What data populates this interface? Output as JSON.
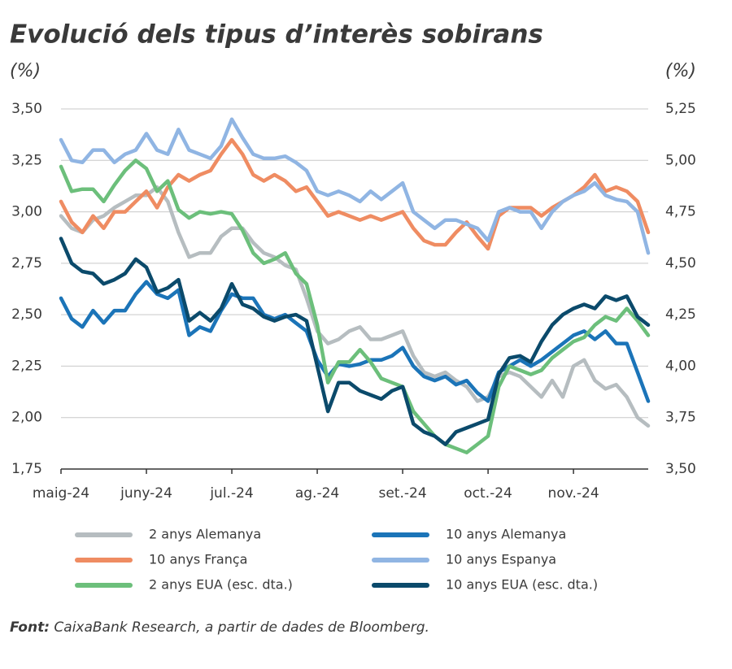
{
  "chart_data": {
    "type": "line",
    "title": "Evolució dels tipus d’interès sobirans",
    "y_label": "(%)",
    "y2_label": "(%)",
    "source": {
      "label": "Font:",
      "text": "CaixaBank Research, a partir de dades de Bloomberg."
    },
    "categories": [
      "maig-24",
      null,
      null,
      null,
      null,
      null,
      null,
      null,
      "juny-24",
      null,
      null,
      null,
      null,
      null,
      null,
      null,
      "jul.-24",
      null,
      null,
      null,
      null,
      null,
      null,
      null,
      "ag.-24",
      null,
      null,
      null,
      null,
      null,
      null,
      null,
      "set.-24",
      null,
      null,
      null,
      null,
      null,
      null,
      null,
      "oct.-24",
      null,
      null,
      null,
      null,
      null,
      null,
      null,
      "nov.-24",
      null,
      null,
      null,
      null,
      null,
      null,
      null
    ],
    "ylim": [
      1.75,
      3.5
    ],
    "yticks": [
      {
        "value": 1.75,
        "label": "1,75"
      },
      {
        "value": 2,
        "label": "2,00"
      },
      {
        "value": 2.25,
        "label": "2,25"
      },
      {
        "value": 2.5,
        "label": "2,50"
      },
      {
        "value": 2.75,
        "label": "2,75"
      },
      {
        "value": 3,
        "label": "3,00"
      },
      {
        "value": 3.25,
        "label": "3,25"
      },
      {
        "value": 3.5,
        "label": "3,50"
      }
    ],
    "y2lim": [
      3.5,
      5.25
    ],
    "y2ticks": [
      {
        "value": 3.5,
        "label": "3,50"
      },
      {
        "value": 3.75,
        "label": "3,75"
      },
      {
        "value": 4,
        "label": "4,00"
      },
      {
        "value": 4.25,
        "label": "4,25"
      },
      {
        "value": 4.5,
        "label": "4,50"
      },
      {
        "value": 4.75,
        "label": "4,75"
      },
      {
        "value": 5,
        "label": "5,00"
      },
      {
        "value": 5.25,
        "label": "5,25"
      }
    ],
    "grid": true,
    "series": [
      {
        "name": "2 anys Alemanya",
        "color": "#b6bdc0",
        "values": [
          2.98,
          2.92,
          2.9,
          2.96,
          2.98,
          3.02,
          3.05,
          3.08,
          3.08,
          3.12,
          3.05,
          2.9,
          2.78,
          2.8,
          2.8,
          2.88,
          2.92,
          2.92,
          2.85,
          2.8,
          2.78,
          2.74,
          2.72,
          2.58,
          2.42,
          2.36,
          2.38,
          2.42,
          2.44,
          2.38,
          2.38,
          2.4,
          2.42,
          2.3,
          2.22,
          2.2,
          2.22,
          2.18,
          2.15,
          2.08,
          2.1,
          2.2,
          2.22,
          2.2,
          2.15,
          2.1,
          2.18,
          2.1,
          2.25,
          2.28,
          2.18,
          2.14,
          2.16,
          2.1,
          2.0,
          1.96
        ]
      },
      {
        "name": "10 anys Alemanya",
        "color": "#1b74b8",
        "values": [
          2.58,
          2.48,
          2.44,
          2.52,
          2.46,
          2.52,
          2.52,
          2.6,
          2.66,
          2.6,
          2.58,
          2.62,
          2.4,
          2.44,
          2.42,
          2.52,
          2.6,
          2.58,
          2.58,
          2.5,
          2.48,
          2.5,
          2.46,
          2.42,
          2.28,
          2.2,
          2.26,
          2.25,
          2.26,
          2.28,
          2.28,
          2.3,
          2.34,
          2.25,
          2.2,
          2.18,
          2.2,
          2.16,
          2.18,
          2.12,
          2.08,
          2.22,
          2.25,
          2.28,
          2.25,
          2.28,
          2.32,
          2.36,
          2.4,
          2.42,
          2.38,
          2.42,
          2.36,
          2.36,
          2.22,
          2.08
        ]
      },
      {
        "name": "10 anys França",
        "color": "#ef8c62",
        "values": [
          3.05,
          2.95,
          2.9,
          2.98,
          2.92,
          3.0,
          3.0,
          3.05,
          3.1,
          3.02,
          3.12,
          3.18,
          3.15,
          3.18,
          3.2,
          3.28,
          3.35,
          3.28,
          3.18,
          3.15,
          3.18,
          3.15,
          3.1,
          3.12,
          3.05,
          2.98,
          3.0,
          2.98,
          2.96,
          2.98,
          2.96,
          2.98,
          3.0,
          2.92,
          2.86,
          2.84,
          2.84,
          2.9,
          2.95,
          2.88,
          2.82,
          2.98,
          3.02,
          3.02,
          3.02,
          2.98,
          3.02,
          3.05,
          3.08,
          3.12,
          3.18,
          3.1,
          3.12,
          3.1,
          3.05,
          2.9
        ]
      },
      {
        "name": "10 anys Espanya",
        "color": "#90b5e3",
        "values": [
          3.35,
          3.25,
          3.24,
          3.3,
          3.3,
          3.24,
          3.28,
          3.3,
          3.38,
          3.3,
          3.28,
          3.4,
          3.3,
          3.28,
          3.26,
          3.32,
          3.45,
          3.36,
          3.28,
          3.26,
          3.26,
          3.27,
          3.24,
          3.2,
          3.1,
          3.08,
          3.1,
          3.08,
          3.05,
          3.1,
          3.06,
          3.1,
          3.14,
          3.0,
          2.96,
          2.92,
          2.96,
          2.96,
          2.94,
          2.92,
          2.86,
          3.0,
          3.02,
          3.0,
          3.0,
          2.92,
          3.0,
          3.05,
          3.08,
          3.1,
          3.14,
          3.08,
          3.06,
          3.05,
          3.0,
          2.8
        ]
      },
      {
        "name": "2 anys EUA (esc. dta.)",
        "color": "#6cbf7b",
        "axis": "y2",
        "values": [
          4.97,
          4.85,
          4.86,
          4.86,
          4.8,
          4.88,
          4.95,
          5.0,
          4.96,
          4.85,
          4.9,
          4.76,
          4.72,
          4.75,
          4.74,
          4.75,
          4.74,
          4.66,
          4.55,
          4.5,
          4.52,
          4.55,
          4.45,
          4.4,
          4.2,
          3.92,
          4.02,
          4.02,
          4.08,
          4.02,
          3.94,
          3.92,
          3.9,
          3.78,
          3.72,
          3.66,
          3.62,
          3.6,
          3.58,
          3.62,
          3.66,
          3.9,
          4.0,
          3.98,
          3.96,
          3.98,
          4.04,
          4.08,
          4.12,
          4.14,
          4.2,
          4.24,
          4.22,
          4.28,
          4.22,
          4.15
        ]
      },
      {
        "name": "10 anys EUA (esc. dta.)",
        "color": "#0b4a6b",
        "axis": "y2",
        "values": [
          4.62,
          4.5,
          4.46,
          4.45,
          4.4,
          4.42,
          4.45,
          4.52,
          4.48,
          4.36,
          4.38,
          4.42,
          4.22,
          4.26,
          4.22,
          4.28,
          4.4,
          4.3,
          4.28,
          4.24,
          4.22,
          4.24,
          4.25,
          4.22,
          4.0,
          3.78,
          3.92,
          3.92,
          3.88,
          3.86,
          3.84,
          3.88,
          3.9,
          3.72,
          3.68,
          3.66,
          3.62,
          3.68,
          3.7,
          3.72,
          3.74,
          3.96,
          4.04,
          4.05,
          4.02,
          4.12,
          4.2,
          4.25,
          4.28,
          4.3,
          4.28,
          4.34,
          4.32,
          4.34,
          4.24,
          4.2
        ]
      }
    ]
  }
}
